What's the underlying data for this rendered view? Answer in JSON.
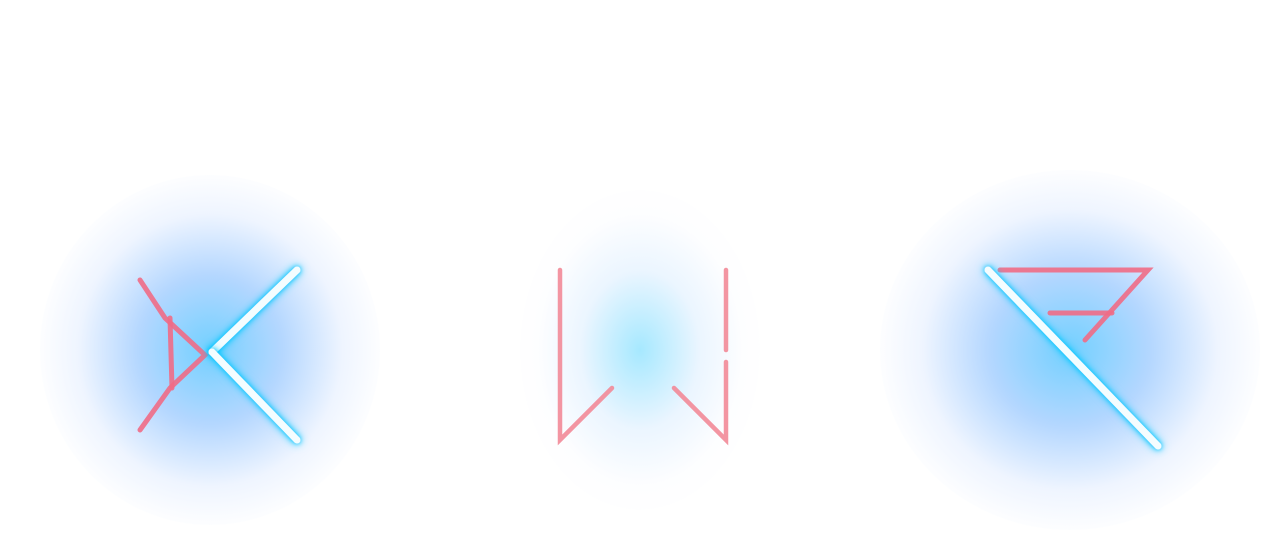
{
  "colors": {
    "background": "#ffffff",
    "neon_core": "#f4fdff",
    "neon_glow": "#00c8ff",
    "accent_pink": "#ef6b86"
  },
  "glyphs": [
    {
      "id": "glyph-1",
      "icon": "neon-k-rune-icon"
    },
    {
      "id": "glyph-2",
      "icon": "neon-bar-rune-icon"
    },
    {
      "id": "glyph-3",
      "icon": "neon-n-rune-icon"
    }
  ]
}
